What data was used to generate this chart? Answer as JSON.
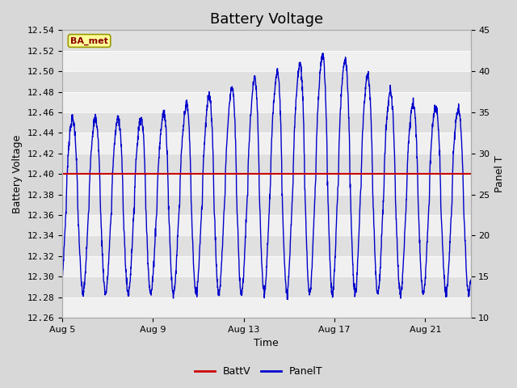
{
  "title": "Battery Voltage",
  "xlabel": "Time",
  "ylabel_left": "Battery Voltage",
  "ylabel_right": "Panel T",
  "xlim_days": [
    0,
    18
  ],
  "ylim_left": [
    12.26,
    12.54
  ],
  "ylim_right": [
    10,
    45
  ],
  "yticks_left": [
    12.26,
    12.28,
    12.3,
    12.32,
    12.34,
    12.36,
    12.38,
    12.4,
    12.42,
    12.44,
    12.46,
    12.48,
    12.5,
    12.52,
    12.54
  ],
  "yticks_right": [
    10,
    15,
    20,
    25,
    30,
    35,
    40,
    45
  ],
  "xtick_labels": [
    "Aug 5",
    "Aug 9",
    "Aug 13",
    "Aug 17",
    "Aug 21"
  ],
  "xtick_positions": [
    0,
    4,
    8,
    12,
    16
  ],
  "battv_value": 12.4,
  "fig_bg_color": "#d8d8d8",
  "plot_bg_color": "#e8e8e8",
  "band_light": "#f0f0f0",
  "band_dark": "#e0e0e0",
  "red_line_color": "#cc0000",
  "blue_line_color": "#0000cc",
  "legend_battv": "BattV",
  "legend_panelt": "PanelT",
  "annotation_text": "BA_met",
  "annotation_bg": "#ffff99",
  "annotation_border": "#999900",
  "title_fontsize": 13,
  "axis_label_fontsize": 9,
  "tick_fontsize": 8
}
